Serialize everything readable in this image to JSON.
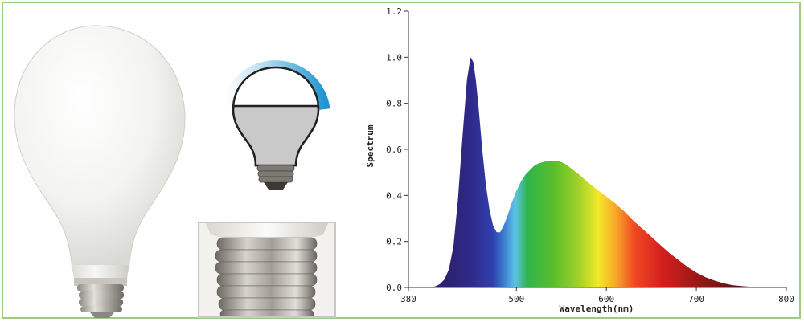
{
  "chart_data": {
    "type": "area",
    "xlabel": "Wavelength(nm)",
    "ylabel": "Spectrum",
    "xlim": [
      380,
      800
    ],
    "ylim": [
      0,
      1.2
    ],
    "xticks": [
      380,
      500,
      600,
      700,
      800
    ],
    "yticks": [
      0.0,
      0.2,
      0.4,
      0.6,
      0.8,
      1.0,
      1.2
    ],
    "xtick_labels": [
      "380",
      "500",
      "600",
      "700",
      "800"
    ],
    "ytick_labels": [
      "0.0",
      "0.2",
      "0.4",
      "0.6",
      "0.8",
      "1.0",
      "1.2"
    ],
    "grid": false,
    "series": [
      {
        "x": [
          380,
          400,
          410,
          415,
          420,
          425,
          430,
          435,
          440,
          445,
          449,
          452,
          455,
          458,
          462,
          466,
          470,
          474,
          478,
          482,
          486,
          490,
          495,
          500,
          505,
          510,
          515,
          520,
          525,
          530,
          535,
          540,
          545,
          550,
          555,
          560,
          570,
          580,
          590,
          600,
          610,
          620,
          630,
          640,
          650,
          660,
          670,
          680,
          690,
          700,
          710,
          720,
          730,
          740,
          750,
          760,
          770,
          780,
          800
        ],
        "y": [
          0.0,
          0.0,
          0.005,
          0.015,
          0.035,
          0.08,
          0.18,
          0.38,
          0.65,
          0.9,
          1.0,
          0.98,
          0.9,
          0.78,
          0.6,
          0.45,
          0.34,
          0.27,
          0.24,
          0.24,
          0.27,
          0.31,
          0.37,
          0.42,
          0.46,
          0.49,
          0.51,
          0.53,
          0.54,
          0.545,
          0.55,
          0.55,
          0.55,
          0.545,
          0.535,
          0.52,
          0.49,
          0.455,
          0.425,
          0.395,
          0.365,
          0.33,
          0.29,
          0.255,
          0.22,
          0.185,
          0.15,
          0.12,
          0.09,
          0.065,
          0.045,
          0.03,
          0.018,
          0.01,
          0.006,
          0.003,
          0.001,
          0.0,
          0.0
        ]
      }
    ],
    "fill": "visible-spectrum-gradient"
  },
  "colors": {
    "frame_border": "#9ccb86",
    "icon_arc": "#1f95d2",
    "icon_arc_light": "#cfe8f6"
  },
  "icons": [
    "led-bulb-photo",
    "dimmable-bulb-icon",
    "e27-base-photo"
  ]
}
